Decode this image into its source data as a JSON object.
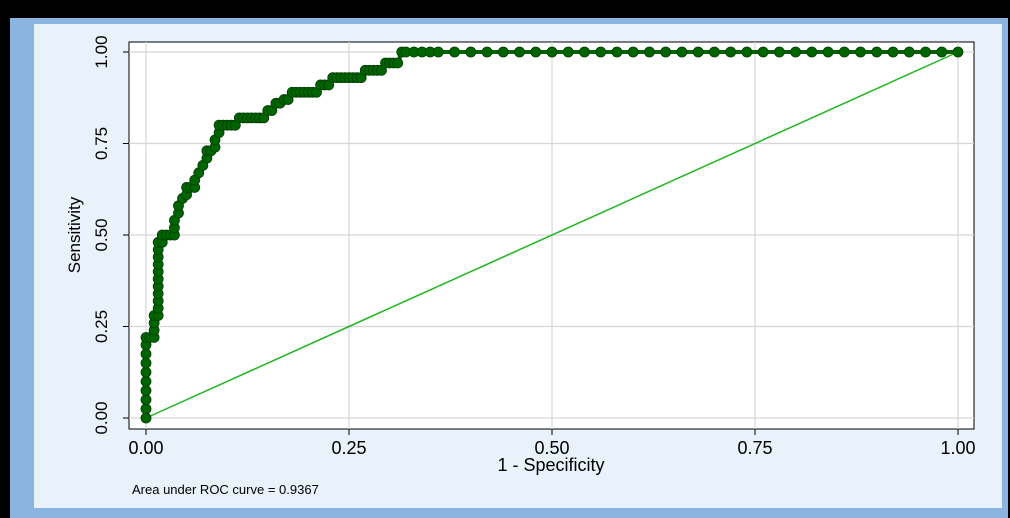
{
  "chart_data": {
    "type": "scatter",
    "xlabel": "1 - Specificity",
    "ylabel": "Sensitivity",
    "xlim": [
      0,
      1
    ],
    "ylim": [
      0,
      1
    ],
    "xticks": [
      "0.00",
      "0.25",
      "0.50",
      "0.75",
      "1.00"
    ],
    "yticks": [
      "0.00",
      "0.25",
      "0.50",
      "0.75",
      "1.00"
    ],
    "grid": true,
    "annotation": "Area under ROC curve = 0.9367",
    "colors": {
      "curve": "#006400",
      "reference": "#1fb51f",
      "frame": "#8cb4e1",
      "plot_bg": "#ffffff"
    },
    "series": [
      {
        "type": "roc-curve",
        "points": [
          [
            0.0,
            0.0
          ],
          [
            0.0,
            0.025
          ],
          [
            0.0,
            0.05
          ],
          [
            0.0,
            0.075
          ],
          [
            0.0,
            0.1
          ],
          [
            0.0,
            0.125
          ],
          [
            0.0,
            0.15
          ],
          [
            0.0,
            0.175
          ],
          [
            0.0,
            0.2
          ],
          [
            0.0,
            0.22
          ],
          [
            0.005,
            0.22
          ],
          [
            0.01,
            0.22
          ],
          [
            0.01,
            0.24
          ],
          [
            0.01,
            0.26
          ],
          [
            0.01,
            0.28
          ],
          [
            0.015,
            0.28
          ],
          [
            0.015,
            0.3
          ],
          [
            0.015,
            0.32
          ],
          [
            0.015,
            0.34
          ],
          [
            0.015,
            0.36
          ],
          [
            0.015,
            0.38
          ],
          [
            0.015,
            0.4
          ],
          [
            0.015,
            0.42
          ],
          [
            0.015,
            0.44
          ],
          [
            0.015,
            0.46
          ],
          [
            0.015,
            0.48
          ],
          [
            0.02,
            0.48
          ],
          [
            0.02,
            0.5
          ],
          [
            0.025,
            0.5
          ],
          [
            0.03,
            0.5
          ],
          [
            0.035,
            0.5
          ],
          [
            0.035,
            0.52
          ],
          [
            0.035,
            0.54
          ],
          [
            0.04,
            0.56
          ],
          [
            0.04,
            0.58
          ],
          [
            0.045,
            0.6
          ],
          [
            0.05,
            0.61
          ],
          [
            0.05,
            0.63
          ],
          [
            0.055,
            0.63
          ],
          [
            0.06,
            0.63
          ],
          [
            0.06,
            0.65
          ],
          [
            0.065,
            0.67
          ],
          [
            0.07,
            0.69
          ],
          [
            0.075,
            0.71
          ],
          [
            0.075,
            0.73
          ],
          [
            0.08,
            0.73
          ],
          [
            0.085,
            0.74
          ],
          [
            0.085,
            0.76
          ],
          [
            0.09,
            0.78
          ],
          [
            0.09,
            0.8
          ],
          [
            0.095,
            0.8
          ],
          [
            0.1,
            0.8
          ],
          [
            0.105,
            0.8
          ],
          [
            0.11,
            0.8
          ],
          [
            0.115,
            0.82
          ],
          [
            0.12,
            0.82
          ],
          [
            0.125,
            0.82
          ],
          [
            0.13,
            0.82
          ],
          [
            0.135,
            0.82
          ],
          [
            0.14,
            0.82
          ],
          [
            0.145,
            0.82
          ],
          [
            0.15,
            0.84
          ],
          [
            0.155,
            0.84
          ],
          [
            0.16,
            0.86
          ],
          [
            0.165,
            0.86
          ],
          [
            0.17,
            0.87
          ],
          [
            0.175,
            0.87
          ],
          [
            0.18,
            0.89
          ],
          [
            0.185,
            0.89
          ],
          [
            0.19,
            0.89
          ],
          [
            0.195,
            0.89
          ],
          [
            0.2,
            0.89
          ],
          [
            0.205,
            0.89
          ],
          [
            0.21,
            0.89
          ],
          [
            0.215,
            0.91
          ],
          [
            0.22,
            0.91
          ],
          [
            0.225,
            0.91
          ],
          [
            0.23,
            0.93
          ],
          [
            0.235,
            0.93
          ],
          [
            0.24,
            0.93
          ],
          [
            0.245,
            0.93
          ],
          [
            0.25,
            0.93
          ],
          [
            0.255,
            0.93
          ],
          [
            0.26,
            0.93
          ],
          [
            0.265,
            0.93
          ],
          [
            0.27,
            0.95
          ],
          [
            0.275,
            0.95
          ],
          [
            0.28,
            0.95
          ],
          [
            0.285,
            0.95
          ],
          [
            0.29,
            0.95
          ],
          [
            0.295,
            0.97
          ],
          [
            0.3,
            0.97
          ],
          [
            0.305,
            0.97
          ],
          [
            0.31,
            0.97
          ],
          [
            0.315,
            1.0
          ],
          [
            0.32,
            1.0
          ],
          [
            0.33,
            1.0
          ],
          [
            0.34,
            1.0
          ],
          [
            0.35,
            1.0
          ],
          [
            0.36,
            1.0
          ],
          [
            0.38,
            1.0
          ],
          [
            0.4,
            1.0
          ],
          [
            0.42,
            1.0
          ],
          [
            0.44,
            1.0
          ],
          [
            0.46,
            1.0
          ],
          [
            0.48,
            1.0
          ],
          [
            0.5,
            1.0
          ],
          [
            0.52,
            1.0
          ],
          [
            0.54,
            1.0
          ],
          [
            0.56,
            1.0
          ],
          [
            0.58,
            1.0
          ],
          [
            0.6,
            1.0
          ],
          [
            0.62,
            1.0
          ],
          [
            0.64,
            1.0
          ],
          [
            0.66,
            1.0
          ],
          [
            0.68,
            1.0
          ],
          [
            0.7,
            1.0
          ],
          [
            0.72,
            1.0
          ],
          [
            0.74,
            1.0
          ],
          [
            0.76,
            1.0
          ],
          [
            0.78,
            1.0
          ],
          [
            0.8,
            1.0
          ],
          [
            0.82,
            1.0
          ],
          [
            0.84,
            1.0
          ],
          [
            0.86,
            1.0
          ],
          [
            0.88,
            1.0
          ],
          [
            0.9,
            1.0
          ],
          [
            0.92,
            1.0
          ],
          [
            0.94,
            1.0
          ],
          [
            0.96,
            1.0
          ],
          [
            0.98,
            1.0
          ],
          [
            1.0,
            1.0
          ]
        ]
      },
      {
        "type": "reference-line",
        "points": [
          [
            0,
            0
          ],
          [
            1,
            1
          ]
        ]
      }
    ]
  }
}
